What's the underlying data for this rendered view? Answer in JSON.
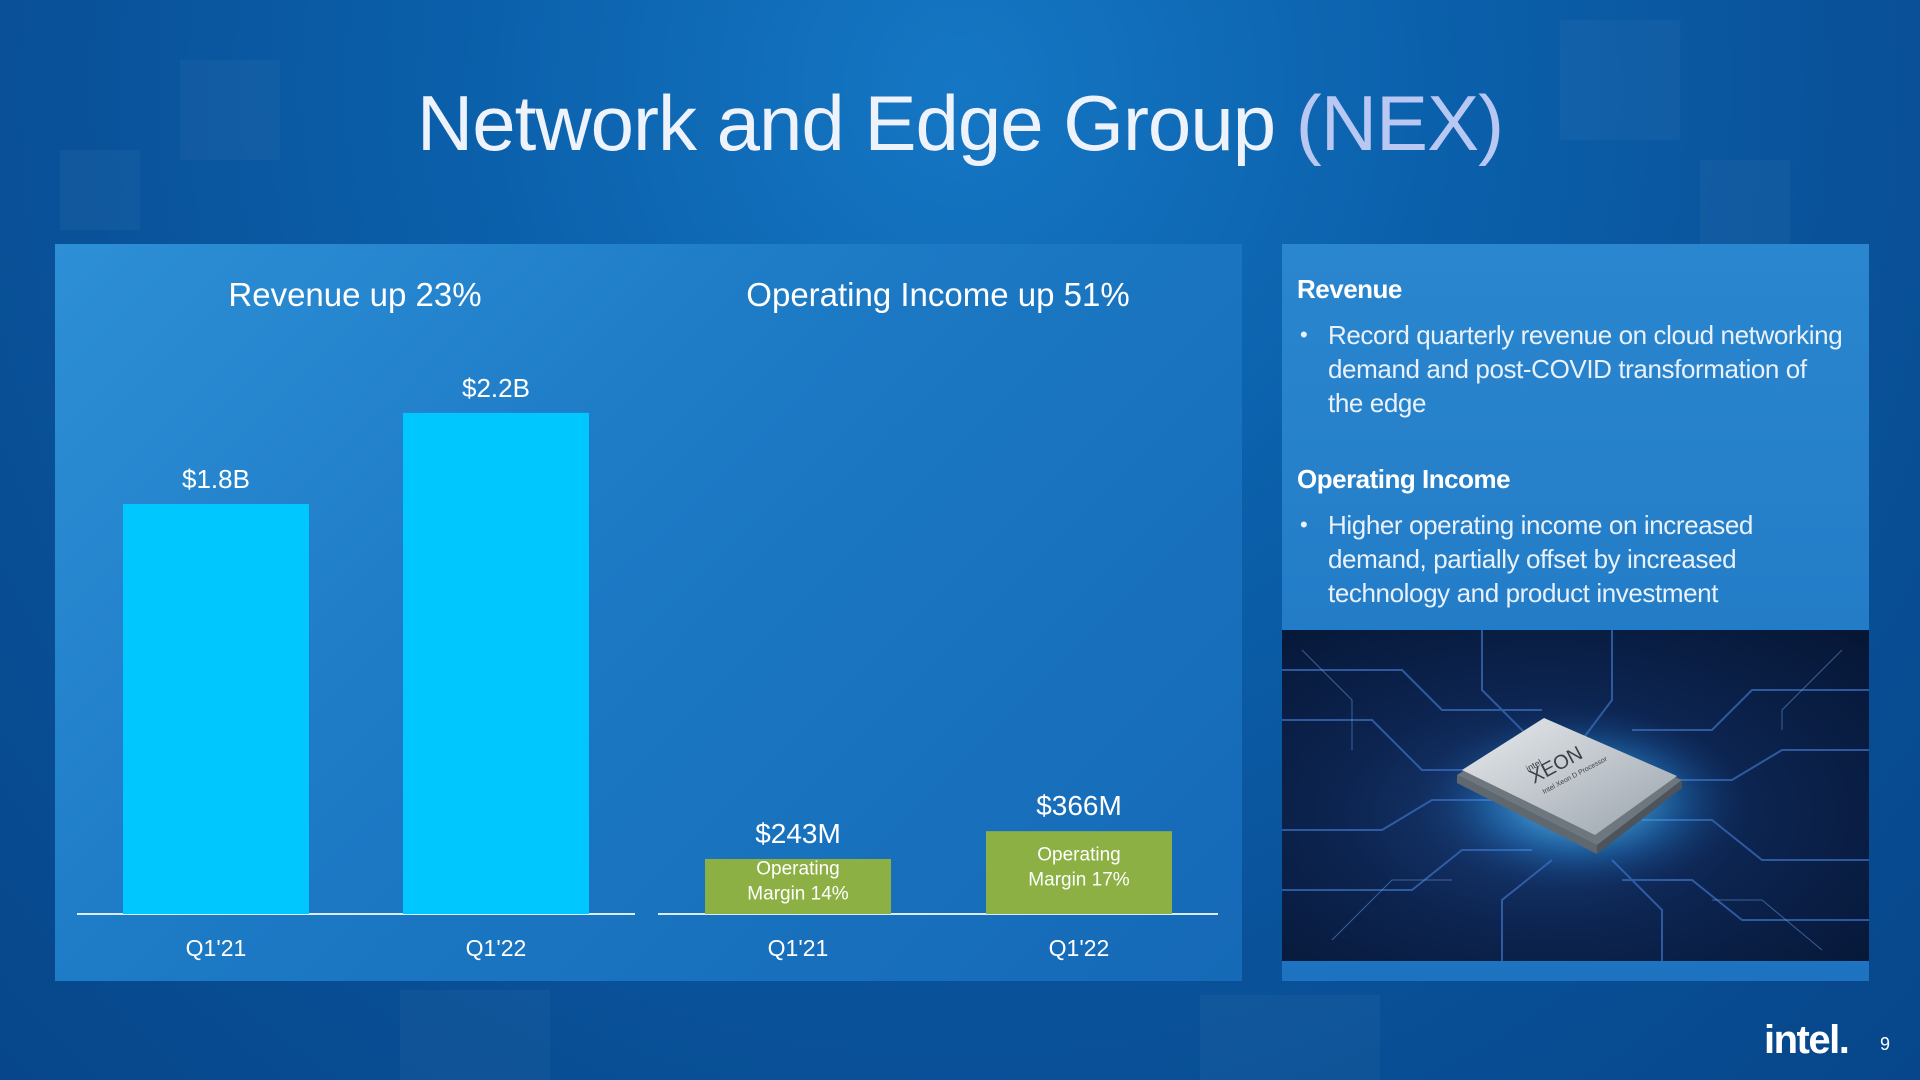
{
  "slide": {
    "title_main": "Network and Edge Group",
    "title_suffix": "(NEX)",
    "page_number": "9",
    "logo_text": "intel."
  },
  "colors": {
    "revenue_bar": "#00c7fd",
    "income_bar": "#8cb043",
    "axis_line": "#d8ecfb"
  },
  "chart_data": [
    {
      "type": "bar",
      "title": "Revenue up 23%",
      "categories": [
        "Q1'21",
        "Q1'22"
      ],
      "values": [
        1.8,
        2.2
      ],
      "value_labels": [
        "$1.8B",
        "$2.2B"
      ],
      "unit": "$B",
      "xlabel": "",
      "ylabel": "",
      "grid": false
    },
    {
      "type": "bar",
      "title": "Operating Income up 51%",
      "categories": [
        "Q1'21",
        "Q1'22"
      ],
      "values": [
        243,
        366
      ],
      "value_labels": [
        "$243M",
        "$366M"
      ],
      "bar_labels": [
        [
          "Operating",
          "Margin 14%"
        ],
        [
          "Operating",
          "Margin 17%"
        ]
      ],
      "unit": "$M",
      "xlabel": "",
      "ylabel": "",
      "grid": false
    }
  ],
  "sidebar": {
    "revenue_heading": "Revenue",
    "revenue_bullet": "Record quarterly revenue on cloud networking demand and post-COVID transformation of the edge",
    "income_heading": "Operating Income",
    "income_bullet": "Higher operating income on increased demand, partially offset by increased technology and product investment",
    "chip_label_brand": "intel",
    "chip_label_name": "XEON",
    "chip_label_sub": "Intel Xeon D Processor"
  },
  "icons": [
    "intel-logo",
    "xeon-chip-image"
  ]
}
